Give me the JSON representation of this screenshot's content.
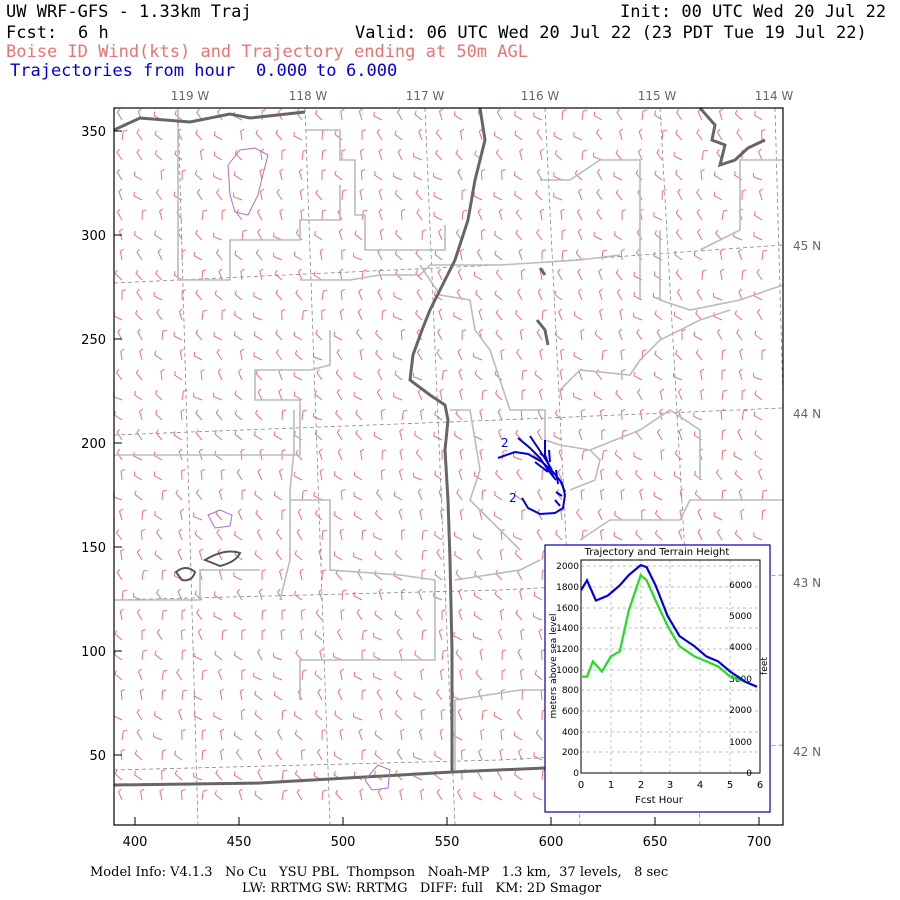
{
  "header": {
    "title": "UW WRF-GFS - 1.33km Traj",
    "init": "Init: 00 UTC Wed 20 Jul 22",
    "fcst_label": "Fcst:",
    "fcst_value": "6 h",
    "valid": "Valid: 06 UTC Wed 20 Jul 22 (23 PDT Tue 19 Jul 22)",
    "subtitle": "Boise ID Wind(kts) and Trajectory ending at 50m AGL",
    "traj_range_label": "Trajectories from hour",
    "traj_start": "0.000",
    "traj_to": "to",
    "traj_end": "6.000"
  },
  "map": {
    "lon_labels": [
      "119 W",
      "118 W",
      "117 W",
      "116 W",
      "115 W",
      "114 W"
    ],
    "lat_labels": [
      "45 N",
      "44 N",
      "43 N",
      "42 N"
    ],
    "y_ticks": [
      "350",
      "300",
      "250",
      "200",
      "150",
      "100",
      "50"
    ],
    "x_ticks": [
      "400",
      "450",
      "500",
      "550",
      "600",
      "650",
      "700"
    ],
    "traj_markers": [
      "2",
      "2"
    ],
    "colors": {
      "barbs": "#e87474",
      "state": "#666666",
      "county": "#bbbbbb",
      "traj": "#0000dd",
      "terrain": "#22dd22",
      "graticule": "#888888"
    }
  },
  "inset": {
    "title": "Trajectory and Terrain Height",
    "ylabel_left": "meters above sea level",
    "ylabel_right": "feet",
    "xlabel": "Fcst Hour",
    "left_ticks": [
      "2000",
      "1800",
      "1600",
      "1400",
      "1200",
      "1000",
      "800",
      "600",
      "400",
      "200",
      "0"
    ],
    "right_ticks": [
      "6000",
      "5000",
      "4000",
      "3000",
      "2000",
      "1000",
      "0"
    ],
    "x_ticks": [
      "0",
      "1",
      "2",
      "3",
      "4",
      "5",
      "6"
    ]
  },
  "chart_data": {
    "type": "line",
    "title": "Trajectory and Terrain Height",
    "xlabel": "Fcst Hour",
    "ylabel": "meters above sea level",
    "xlim": [
      0,
      6
    ],
    "ylim": [
      0,
      2100
    ],
    "grid": true,
    "series": [
      {
        "x": [
          0,
          0.2,
          0.5,
          0.9,
          1.3,
          1.6,
          2.0,
          2.2,
          2.5,
          2.9,
          3.3,
          3.8,
          4.2,
          4.6,
          5.0,
          5.5,
          5.9
        ],
        "values": [
          1800,
          1900,
          1700,
          1750,
          1850,
          1950,
          2050,
          2030,
          1850,
          1550,
          1350,
          1250,
          1150,
          1100,
          1000,
          900,
          850
        ]
      },
      {
        "x": [
          0,
          0.2,
          0.4,
          0.7,
          1.0,
          1.3,
          1.6,
          2.0,
          2.2,
          2.5,
          2.9,
          3.3,
          3.8,
          4.2,
          4.6,
          5.0,
          5.5,
          5.9
        ],
        "values": [
          950,
          950,
          1100,
          1000,
          1150,
          1200,
          1600,
          1950,
          1900,
          1700,
          1450,
          1250,
          1150,
          1100,
          1050,
          950,
          900,
          850
        ]
      }
    ]
  },
  "footer": {
    "line1": "Model Info: V4.1.3   No Cu   YSU PBL  Thompson   Noah-MP   1.3 km,  37 levels,   8 sec",
    "line2": "LW: RRTMG SW: RRTMG   DIFF: full   KM: 2D Smagor"
  }
}
